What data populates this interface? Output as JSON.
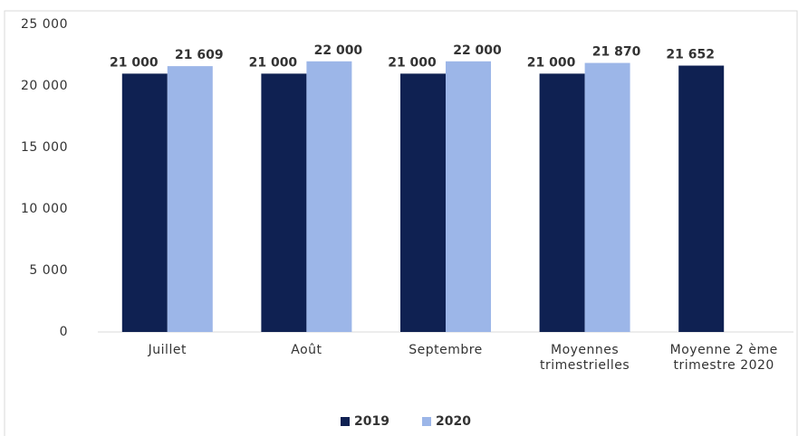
{
  "chart_data": {
    "type": "bar",
    "categories": [
      "Juillet",
      "Août",
      "Septembre",
      "Moyennes trimestrielles",
      "Moyenne 2 ème trimestre 2020"
    ],
    "series": [
      {
        "name": "2019",
        "color": "#0f2152",
        "values": [
          21000,
          21000,
          21000,
          21000,
          21652
        ],
        "value_labels": [
          "21 000",
          "21 000",
          "21 000",
          "21 000",
          "21 652"
        ]
      },
      {
        "name": "2020",
        "color": "#9cb6e8",
        "values": [
          21609,
          22000,
          22000,
          21870,
          null
        ],
        "value_labels": [
          "21 609",
          "22 000",
          "22 000",
          "21 870",
          null
        ]
      }
    ],
    "ylim": [
      0,
      25000
    ],
    "yticks": [
      0,
      {
        "value": 5000,
        "label": "5 000"
      },
      {
        "value": 10000,
        "label": "10 000"
      },
      {
        "value": 15000,
        "label": "15 000"
      },
      {
        "value": 20000,
        "label": "20 000"
      },
      {
        "value": 25000,
        "label": "25 000"
      }
    ],
    "grid": false,
    "legend": "bottom"
  }
}
